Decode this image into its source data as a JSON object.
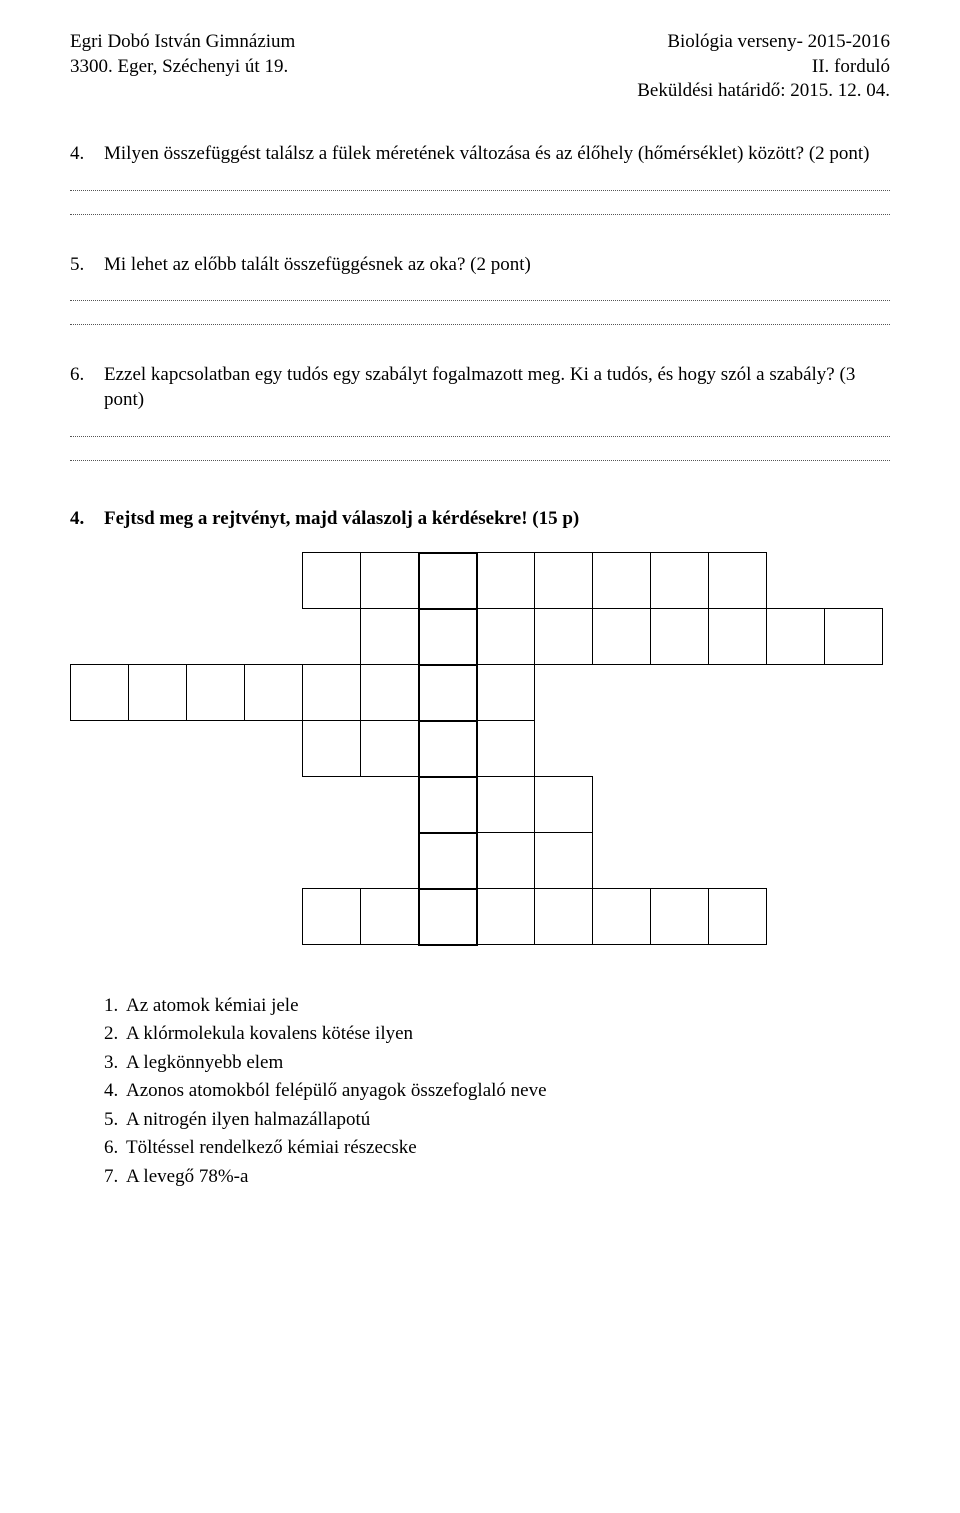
{
  "header": {
    "left1": "Egri Dobó István Gimnázium",
    "left2": "3300. Eger, Széchenyi út 19.",
    "right1": "Biológia verseny- 2015-2016",
    "right2": "II. forduló",
    "right3": "Beküldési határidő: 2015. 12. 04."
  },
  "q4": {
    "num": "4.",
    "text": "Milyen összefüggést találsz a fülek méretének változása és az élőhely (hőmérséklet) között? (2 pont)"
  },
  "q5": {
    "num": "5.",
    "text": "Mi lehet az előbb talált összefüggésnek az oka? (2 pont)"
  },
  "q6": {
    "num": "6.",
    "text": "Ezzel kapcsolatban egy tudós egy szabályt fogalmazott meg. Ki a tudós, és hogy szól a szabály? (3 pont)"
  },
  "section4": {
    "num": "4.",
    "title": "Fejtsd meg a rejtvényt, majd válaszolj a kérdésekre! (15 p)"
  },
  "clues": {
    "c1": {
      "n": "1.",
      "t": "Az atomok kémiai jele"
    },
    "c2": {
      "n": "2.",
      "t": "A klórmolekula kovalens kötése ilyen"
    },
    "c3": {
      "n": "3.",
      "t": "A legkönnyebb elem"
    },
    "c4": {
      "n": "4.",
      "t": "Azonos atomokból felépülő anyagok összefoglaló neve"
    },
    "c5": {
      "n": "5.",
      "t": "A nitrogén ilyen halmazállapotú"
    },
    "c6": {
      "n": "6.",
      "t": "Töltéssel rendelkező kémiai részecske"
    },
    "c7": {
      "n": "7.",
      "t": "A levegő 78%-a"
    }
  },
  "crossword": {
    "grid": [
      [
        0,
        0,
        0,
        0,
        1,
        1,
        2,
        1,
        1,
        1,
        1,
        1,
        0,
        0
      ],
      [
        0,
        0,
        0,
        0,
        0,
        1,
        2,
        1,
        1,
        1,
        1,
        1,
        1,
        1
      ],
      [
        1,
        1,
        1,
        1,
        1,
        1,
        2,
        1,
        0,
        0,
        0,
        0,
        0,
        0
      ],
      [
        0,
        0,
        0,
        0,
        1,
        1,
        2,
        1,
        0,
        0,
        0,
        0,
        0,
        0
      ],
      [
        0,
        0,
        0,
        0,
        0,
        0,
        2,
        1,
        1,
        0,
        0,
        0,
        0,
        0
      ],
      [
        0,
        0,
        0,
        0,
        0,
        0,
        2,
        1,
        1,
        0,
        0,
        0,
        0,
        0
      ],
      [
        0,
        0,
        0,
        0,
        1,
        1,
        2,
        1,
        1,
        1,
        1,
        1,
        0,
        0
      ]
    ]
  }
}
